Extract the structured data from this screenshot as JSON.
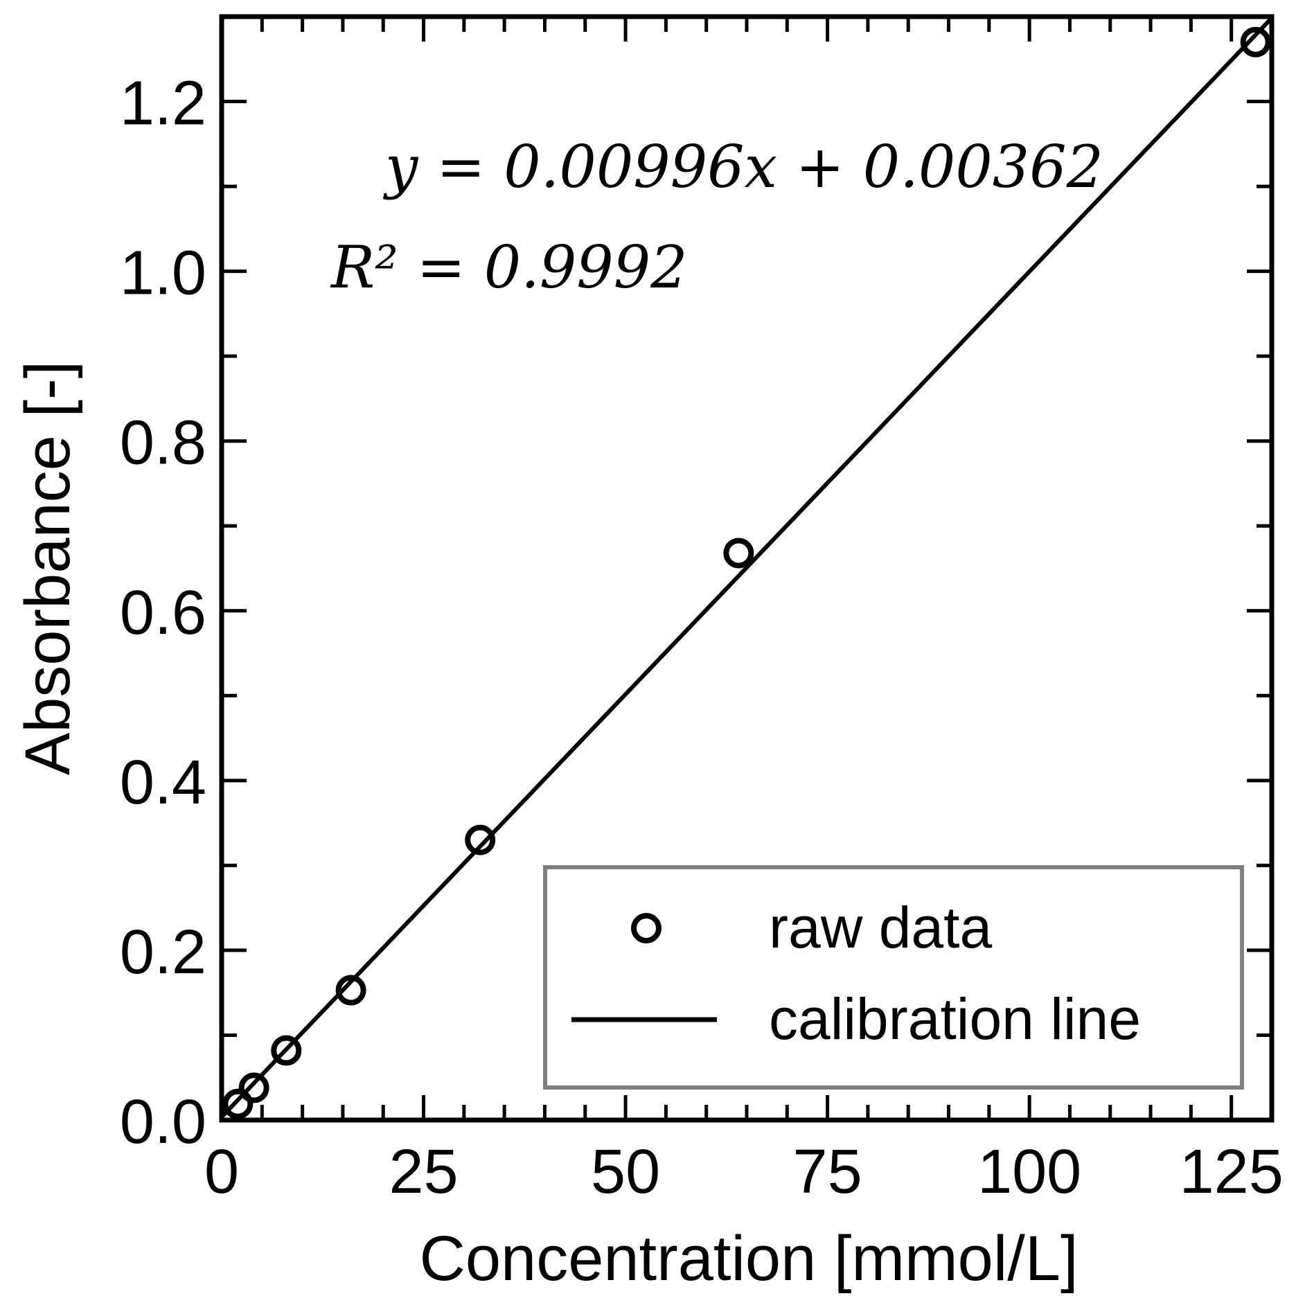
{
  "chart_data": {
    "type": "scatter",
    "xlabel": "Concentration [mmol/L]",
    "ylabel": "Absorbance [-]",
    "xlim": [
      0,
      130
    ],
    "ylim": [
      0,
      1.3
    ],
    "xticks": [
      0,
      25,
      50,
      75,
      100,
      125
    ],
    "xtick_labels": [
      "0",
      "25",
      "50",
      "75",
      "100",
      "125"
    ],
    "yticks": [
      0,
      0.2,
      0.4,
      0.6,
      0.8,
      1.0,
      1.2
    ],
    "ytick_labels": [
      "0.0",
      "0.2",
      "0.4",
      "0.6",
      "0.8",
      "1.0",
      "1.2"
    ],
    "grid": false,
    "legend_position": "bottom-right",
    "series": [
      {
        "name": "raw data",
        "kind": "scatter",
        "marker": "open-circle",
        "color": "#000000",
        "x": [
          2,
          4,
          8,
          16,
          32,
          64,
          128
        ],
        "y": [
          0.019,
          0.038,
          0.082,
          0.153,
          0.33,
          0.668,
          1.27
        ]
      },
      {
        "name": "calibration line",
        "kind": "line",
        "color": "#000000",
        "slope": 0.00996,
        "intercept": 0.00362,
        "x_range": [
          0,
          130
        ]
      }
    ],
    "annotations": {
      "equation": "y = 0.00996x + 0.00362",
      "r_squared": "R² = 0.9992"
    },
    "legend_border_color": "#808080"
  }
}
